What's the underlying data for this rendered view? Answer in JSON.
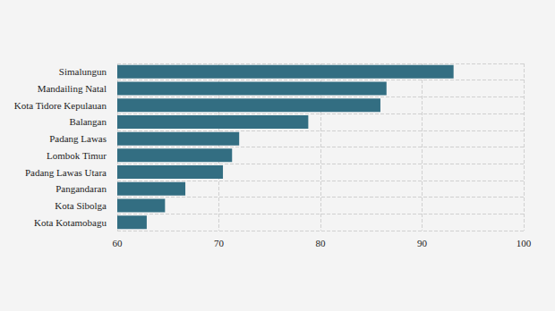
{
  "chart_data": {
    "type": "bar",
    "orientation": "horizontal",
    "categories": [
      "Simalungun",
      "Mandailing Natal",
      "Kota Tidore Kepulauan",
      "Balangan",
      "Padang Lawas",
      "Lombok Timur",
      "Padang Lawas Utara",
      "Pangandaran",
      "Kota Sibolga",
      "Kota Kotamobagu"
    ],
    "values": [
      93.1,
      86.5,
      85.9,
      78.8,
      72.0,
      71.3,
      70.4,
      66.7,
      64.7,
      62.9
    ],
    "color": "#336e82",
    "xlim": [
      60,
      100
    ],
    "xticks": [
      60,
      70,
      80,
      90,
      100
    ],
    "grid": true
  }
}
